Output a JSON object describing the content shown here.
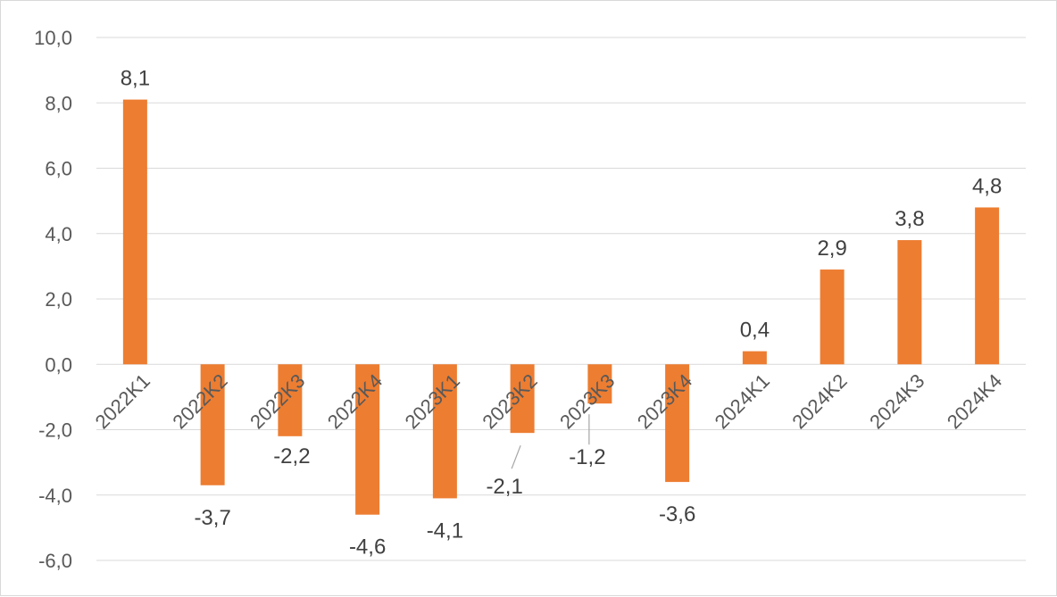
{
  "chart_data": {
    "type": "bar",
    "title": "",
    "xlabel": "",
    "ylabel": "",
    "categories": [
      "2022K1",
      "2022K2",
      "2022K3",
      "2022K4",
      "2023K1",
      "2023K2",
      "2023K3",
      "2023K4",
      "2024K1",
      "2024K2",
      "2024K3",
      "2024K4"
    ],
    "values": [
      8.1,
      -3.7,
      -2.2,
      -4.6,
      -4.1,
      -2.1,
      -1.2,
      -3.6,
      0.4,
      2.9,
      3.8,
      4.8
    ],
    "data_labels": [
      "8,1",
      "-3,7",
      "-2,2",
      "-4,6",
      "-4,1",
      "-2,1",
      "-1,2",
      "-3,6",
      "0,4",
      "2,9",
      "3,8",
      "4,8"
    ],
    "ylim": [
      -6,
      10
    ],
    "yticks": [
      10,
      8,
      6,
      4,
      2,
      0,
      -2,
      -4,
      -6
    ],
    "ytick_labels": [
      "10,0",
      "8,0",
      "6,0",
      "4,0",
      "2,0",
      "0,0",
      "-2,0",
      "-4,0",
      "-6,0"
    ],
    "grid": true,
    "legend": "none",
    "bar_color": "#ED7D31",
    "grid_color": "#D9D9D9",
    "leader_line_color": "#A6A6A6"
  }
}
